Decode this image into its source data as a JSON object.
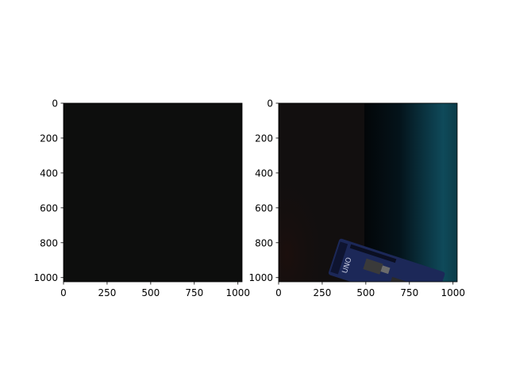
{
  "chart_data": [
    {
      "type": "image",
      "content": "uniform near-black frame",
      "xlim": [
        0,
        1024
      ],
      "ylim": [
        1024,
        0
      ],
      "xticks": [
        0,
        250,
        500,
        750,
        1000
      ],
      "yticks": [
        0,
        200,
        400,
        600,
        800,
        1000
      ],
      "xtick_labels": [
        "0",
        "250",
        "500",
        "750",
        "1000"
      ],
      "ytick_labels": [
        "0",
        "200",
        "400",
        "600",
        "800",
        "1000"
      ],
      "colors": {
        "fill": "#0d0e0d"
      }
    },
    {
      "type": "image",
      "content": "dark photo: black background with teal light band on the right and a blue Arduino UNO board in the lower-right corner",
      "xlim": [
        0,
        1024
      ],
      "ylim": [
        1024,
        0
      ],
      "xticks": [
        0,
        250,
        500,
        750,
        1000
      ],
      "yticks": [
        0,
        200,
        400,
        600,
        800,
        1000
      ],
      "xtick_labels": [
        "0",
        "250",
        "500",
        "750",
        "1000"
      ],
      "ytick_labels": [
        "0",
        "200",
        "400",
        "600",
        "800",
        "1000"
      ],
      "board_text": "UNO",
      "colors": {
        "background": "#120f0f",
        "teal": "#0f4a5a",
        "board": "#1e2a5a"
      }
    }
  ]
}
